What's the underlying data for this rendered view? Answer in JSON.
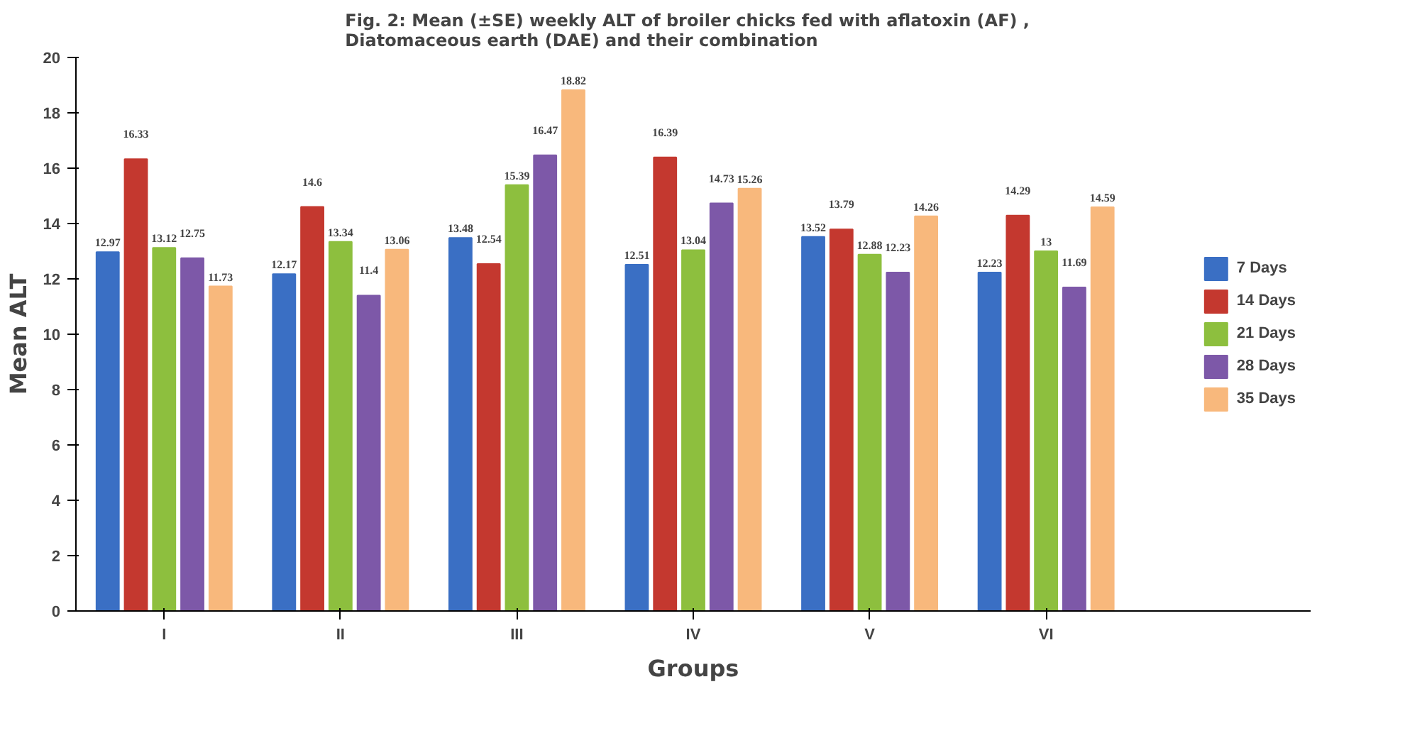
{
  "chart_data": {
    "type": "bar",
    "title": "Fig. 2: Mean (±SE) weekly ALT   of broiler chicks fed with aflatoxin (AF) ,\nDiatomaceous earth (DAE) and their combination",
    "xlabel": "Groups",
    "ylabel": "Mean ALT",
    "categories": [
      "I",
      "II",
      "III",
      "IV",
      "V",
      "VI"
    ],
    "series": [
      {
        "name": "7 Days",
        "color": "#3a6fc4",
        "values": [
          12.97,
          12.17,
          13.48,
          12.51,
          13.52,
          12.23
        ]
      },
      {
        "name": "14 Days",
        "color": "#c4382f",
        "values": [
          16.33,
          14.6,
          12.54,
          16.39,
          13.79,
          14.29
        ]
      },
      {
        "name": "21 Days",
        "color": "#8dbf3e",
        "values": [
          13.12,
          13.34,
          15.39,
          13.04,
          12.88,
          13
        ]
      },
      {
        "name": "28 Days",
        "color": "#7d58a8",
        "values": [
          12.75,
          11.4,
          16.47,
          14.73,
          12.23,
          11.69
        ]
      },
      {
        "name": "35 Days",
        "color": "#f8b87c",
        "values": [
          11.73,
          13.06,
          18.82,
          15.26,
          14.26,
          14.59
        ]
      }
    ],
    "ylim": [
      0,
      20
    ],
    "yticks": [
      0,
      2,
      4,
      6,
      8,
      10,
      12,
      14,
      16,
      18,
      20
    ],
    "grid": false,
    "legend": "right",
    "data_labels": true
  }
}
